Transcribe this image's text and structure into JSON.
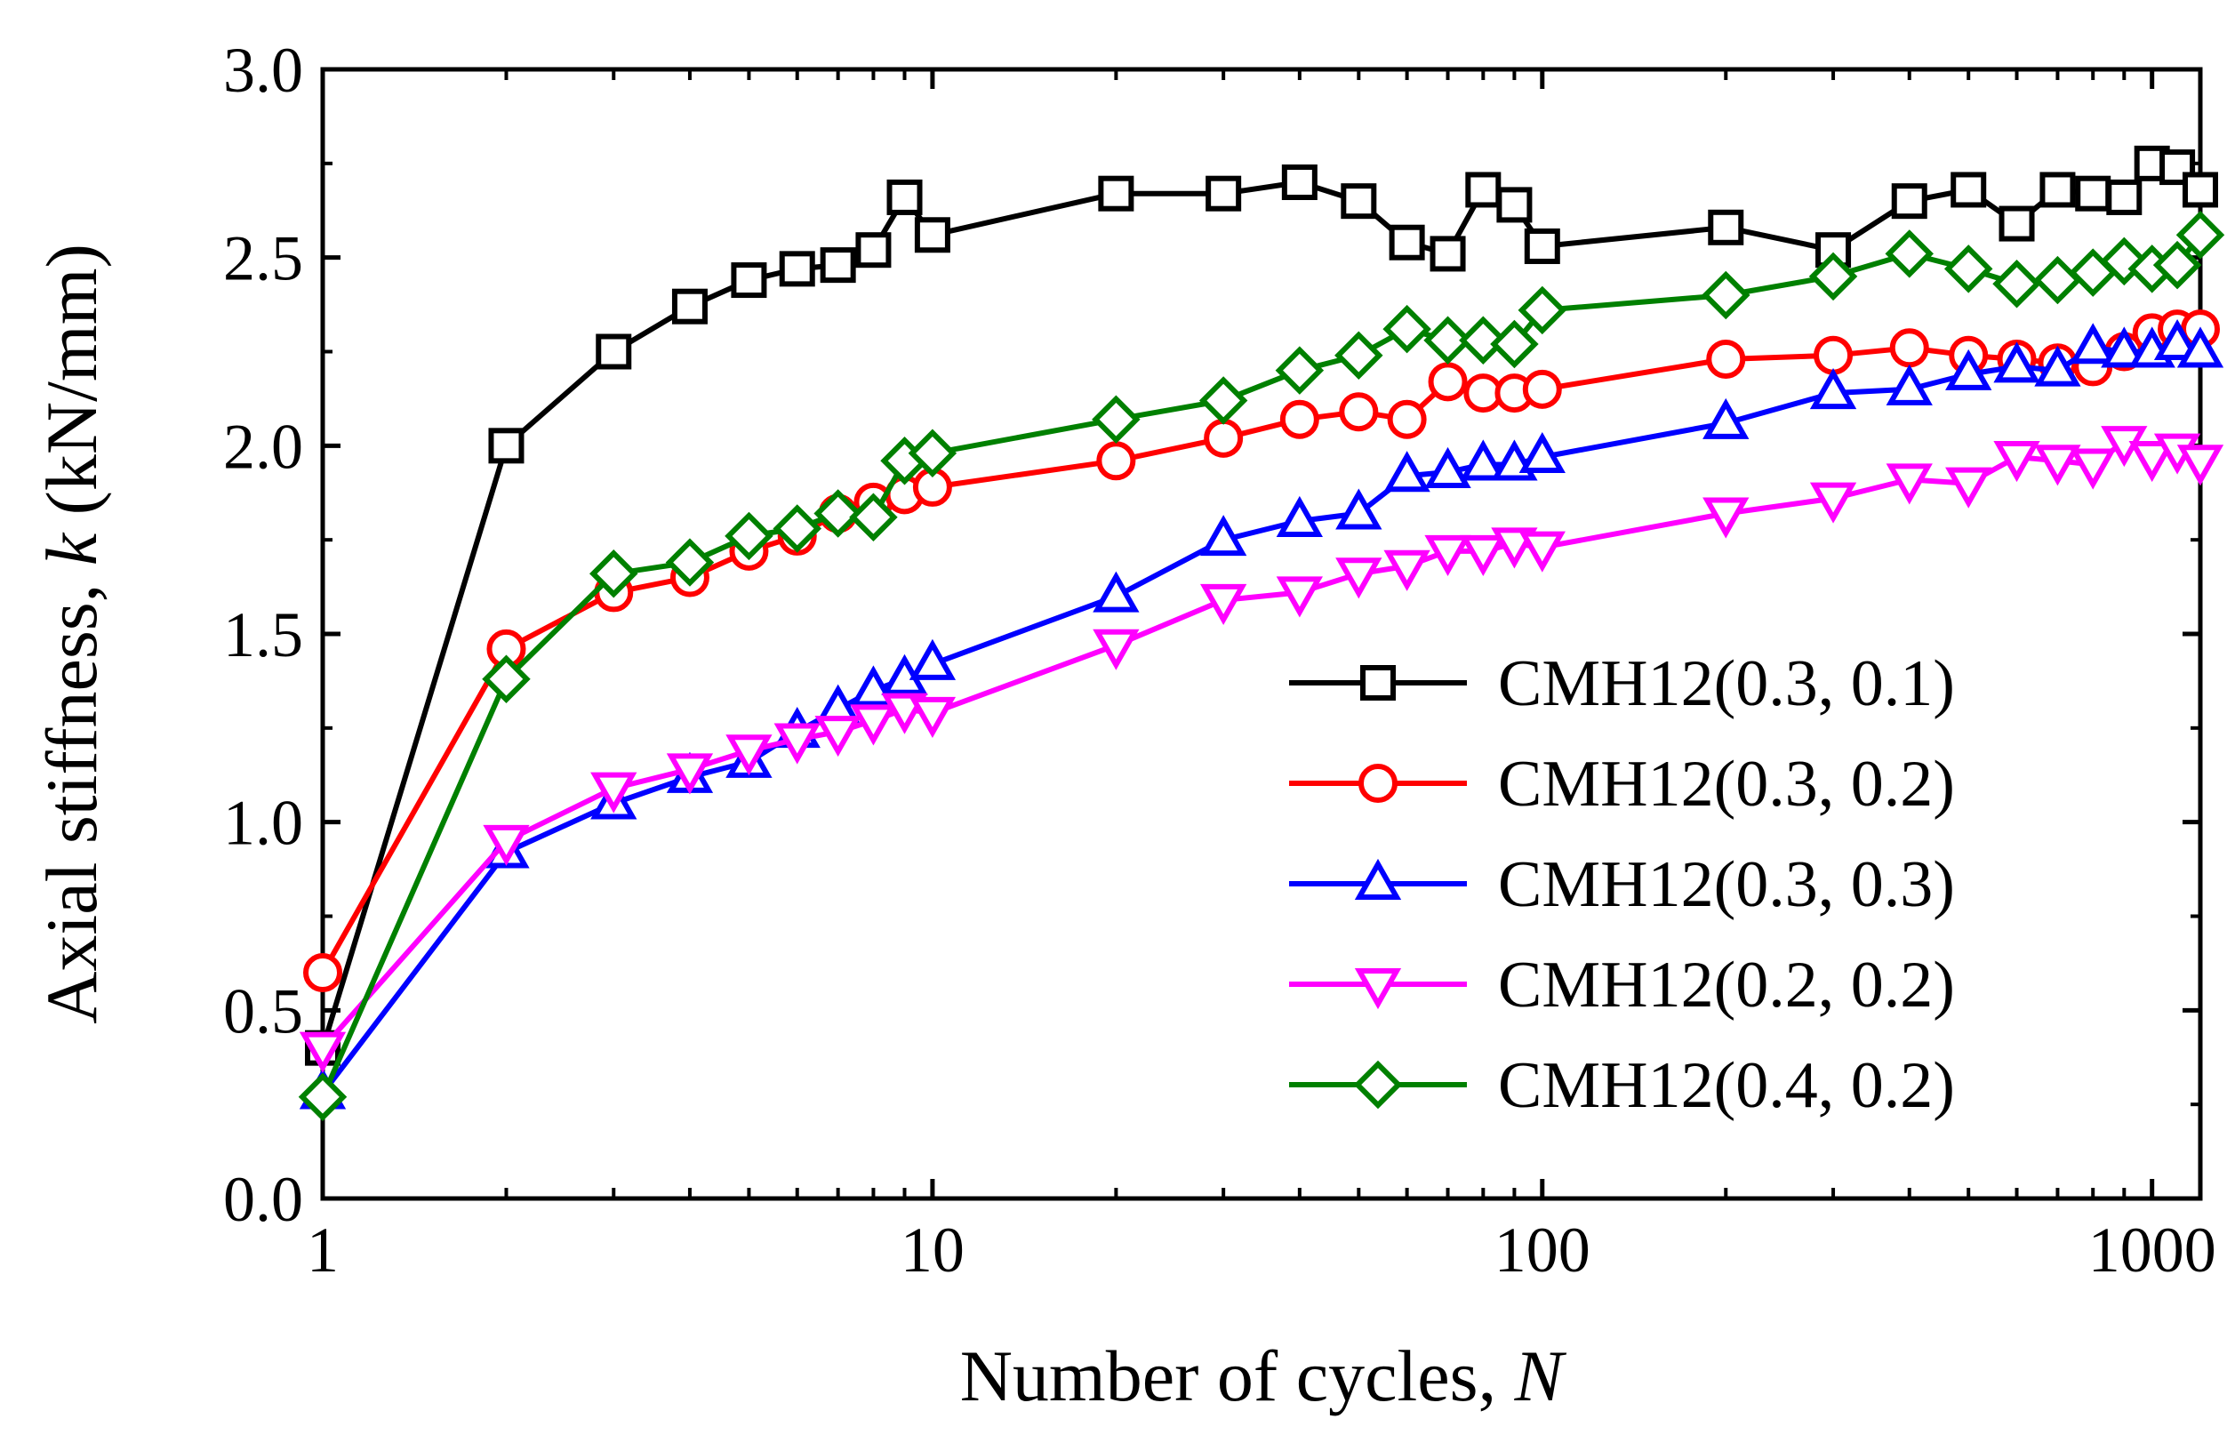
{
  "chart_data": {
    "type": "line",
    "xscale": "log",
    "xlabel_prefix": "Number of cycles, ",
    "xlabel_var": "N",
    "ylabel_prefix": "Axial stiffness, ",
    "ylabel_var": "k",
    "ylabel_suffix": " (kN/mm)",
    "xlim": [
      1,
      1200
    ],
    "ylim": [
      0,
      3.0
    ],
    "xticks": [
      1,
      10,
      100,
      1000
    ],
    "xtick_labels": [
      "1",
      "10",
      "100",
      "1000"
    ],
    "yticks": [
      0,
      0.5,
      1.0,
      1.5,
      2.0,
      2.5,
      3.0
    ],
    "ytick_labels": [
      "0.0",
      "0.5",
      "1.0",
      "1.5",
      "2.0",
      "2.5",
      "3.0"
    ],
    "legend_position": "bottom-right",
    "x": [
      1,
      2,
      3,
      4,
      5,
      6,
      7,
      8,
      9,
      10,
      20,
      30,
      40,
      50,
      60,
      70,
      80,
      90,
      100,
      200,
      300,
      400,
      500,
      600,
      700,
      800,
      900,
      1000,
      1100,
      1200
    ],
    "series": [
      {
        "name": "CMH12(0.3, 0.1)",
        "color": "#000000",
        "marker": "square",
        "values": [
          0.4,
          2.0,
          2.25,
          2.37,
          2.44,
          2.47,
          2.48,
          2.52,
          2.66,
          2.56,
          2.67,
          2.67,
          2.7,
          2.65,
          2.54,
          2.51,
          2.68,
          2.64,
          2.53,
          2.58,
          2.52,
          2.65,
          2.68,
          2.59,
          2.68,
          2.67,
          2.66,
          2.75,
          2.74,
          2.68
        ]
      },
      {
        "name": "CMH12(0.3, 0.2)",
        "color": "#ff0000",
        "marker": "circle",
        "values": [
          0.6,
          1.46,
          1.61,
          1.65,
          1.72,
          1.76,
          1.82,
          1.85,
          1.87,
          1.89,
          1.96,
          2.02,
          2.07,
          2.09,
          2.07,
          2.17,
          2.14,
          2.14,
          2.15,
          2.23,
          2.24,
          2.26,
          2.24,
          2.23,
          2.22,
          2.21,
          2.25,
          2.3,
          2.31,
          2.31
        ]
      },
      {
        "name": "CMH12(0.3, 0.3)",
        "color": "#0000ff",
        "marker": "triangle-up",
        "values": [
          0.28,
          0.92,
          1.05,
          1.12,
          1.16,
          1.24,
          1.3,
          1.35,
          1.38,
          1.42,
          1.6,
          1.75,
          1.8,
          1.82,
          1.92,
          1.93,
          1.95,
          1.95,
          1.97,
          2.06,
          2.14,
          2.15,
          2.19,
          2.21,
          2.2,
          2.26,
          2.25,
          2.25,
          2.27,
          2.25
        ]
      },
      {
        "name": "CMH12(0.2, 0.2)",
        "color": "#ff00ff",
        "marker": "triangle-down",
        "values": [
          0.4,
          0.95,
          1.09,
          1.14,
          1.19,
          1.22,
          1.24,
          1.27,
          1.3,
          1.29,
          1.47,
          1.59,
          1.61,
          1.66,
          1.68,
          1.72,
          1.72,
          1.74,
          1.73,
          1.82,
          1.86,
          1.91,
          1.9,
          1.97,
          1.96,
          1.95,
          2.01,
          1.97,
          1.99,
          1.96
        ]
      },
      {
        "name": "CMH12(0.4, 0.2)",
        "color": "#008000",
        "marker": "diamond",
        "values": [
          0.27,
          1.38,
          1.66,
          1.69,
          1.76,
          1.78,
          1.82,
          1.81,
          1.96,
          1.98,
          2.07,
          2.12,
          2.2,
          2.24,
          2.31,
          2.28,
          2.28,
          2.27,
          2.36,
          2.4,
          2.45,
          2.51,
          2.47,
          2.43,
          2.44,
          2.46,
          2.49,
          2.47,
          2.48,
          2.56
        ]
      }
    ]
  }
}
